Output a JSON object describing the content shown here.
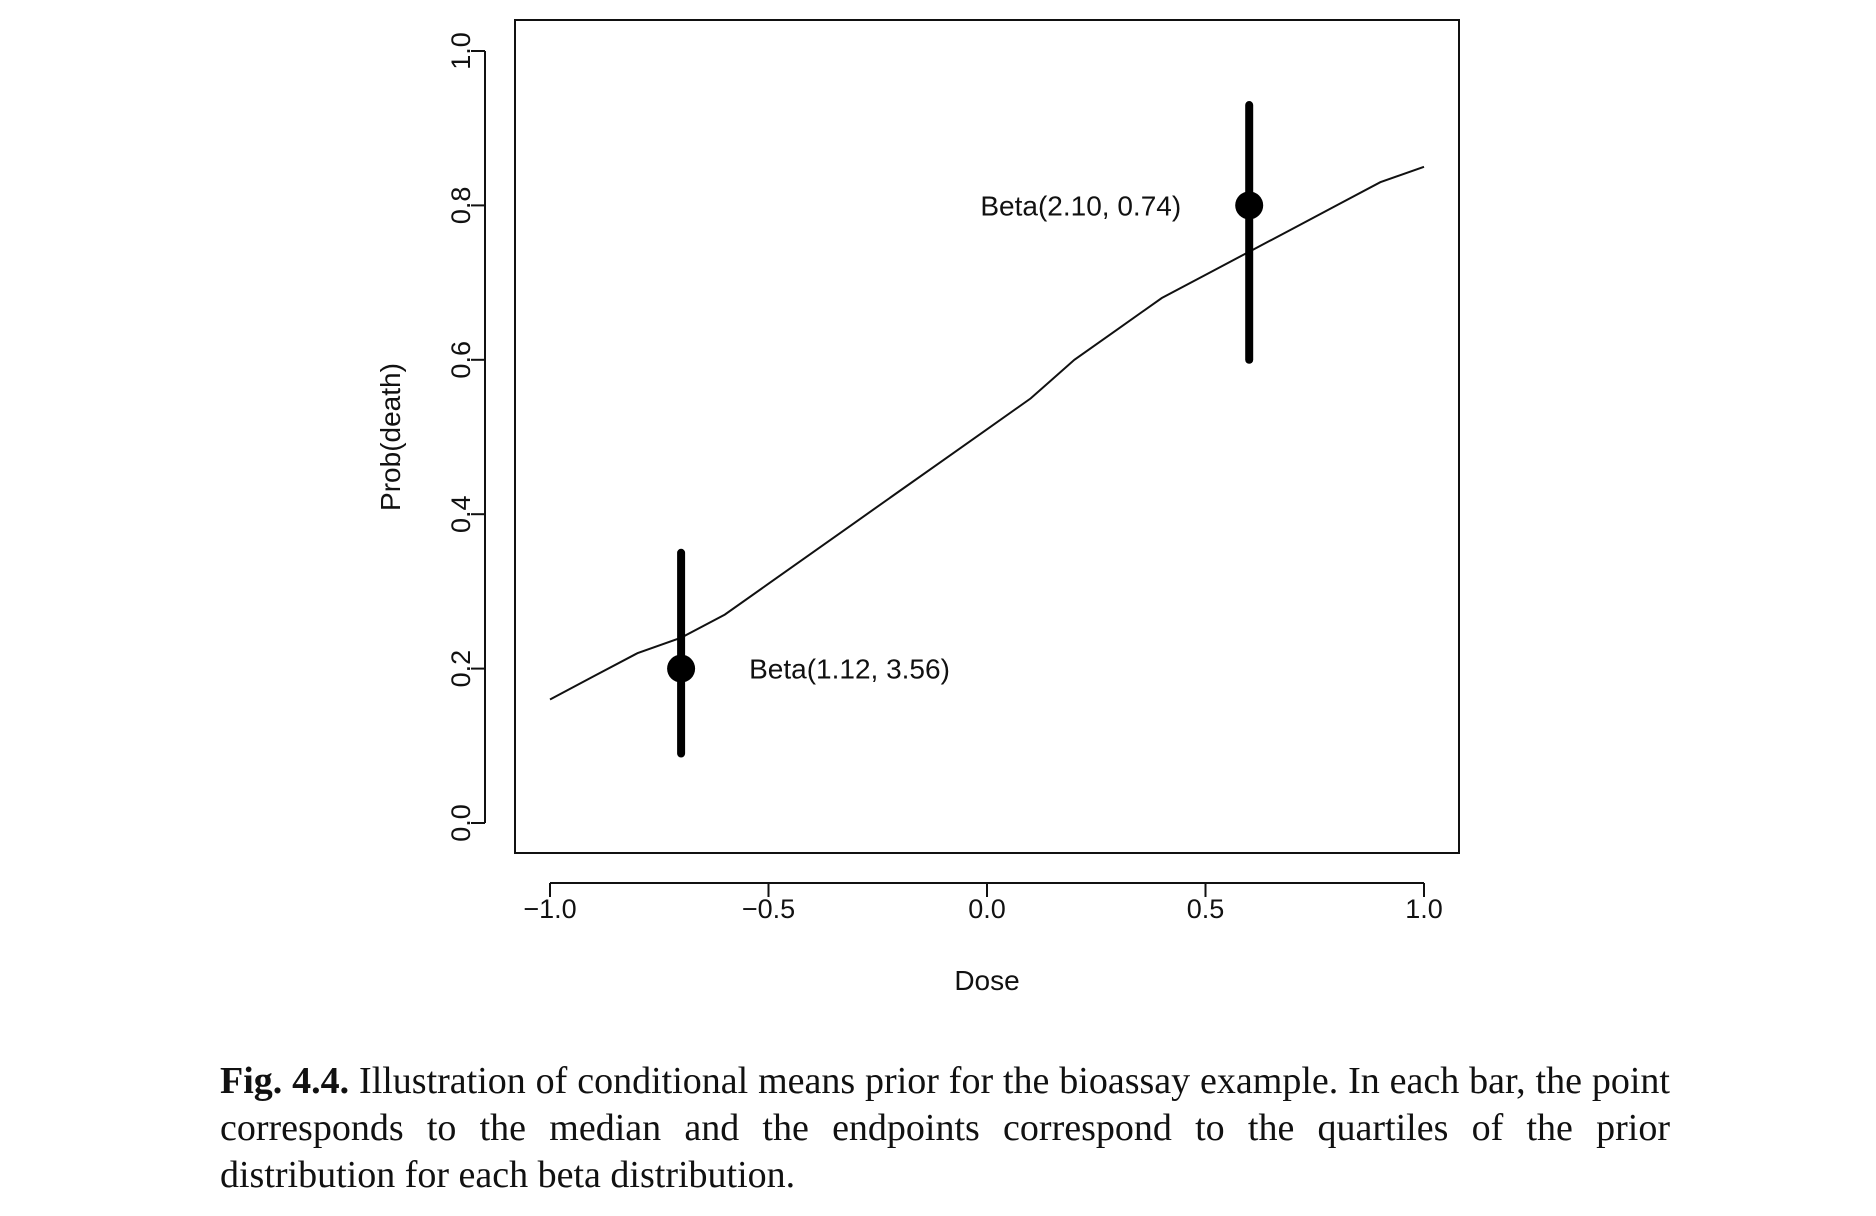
{
  "chart_data": {
    "type": "line",
    "xlabel": "Dose",
    "ylabel": "Prob(death)",
    "xlim": [
      -1.0,
      1.0
    ],
    "ylim": [
      0.0,
      1.0
    ],
    "x_ticks": [
      "−1.0",
      "−0.5",
      "0.0",
      "0.5",
      "1.0"
    ],
    "x_tick_values": [
      -1.0,
      -0.5,
      0.0,
      0.5,
      1.0
    ],
    "y_ticks": [
      "0.0",
      "0.2",
      "0.4",
      "0.6",
      "0.8",
      "1.0"
    ],
    "y_tick_values": [
      0.0,
      0.2,
      0.4,
      0.6,
      0.8,
      1.0
    ],
    "grid": false,
    "curve": {
      "x": [
        -1.0,
        -0.9,
        -0.8,
        -0.7,
        -0.6,
        -0.5,
        -0.4,
        -0.3,
        -0.2,
        -0.1,
        0.0,
        0.1,
        0.2,
        0.3,
        0.4,
        0.5,
        0.6,
        0.7,
        0.8,
        0.9,
        1.0
      ],
      "y": [
        0.16,
        0.19,
        0.22,
        0.24,
        0.27,
        0.31,
        0.35,
        0.39,
        0.43,
        0.47,
        0.51,
        0.55,
        0.6,
        0.64,
        0.68,
        0.71,
        0.74,
        0.77,
        0.8,
        0.83,
        0.85
      ]
    },
    "bars": [
      {
        "x": -0.7,
        "median": 0.2,
        "lower": 0.09,
        "upper": 0.35,
        "label": "Beta(1.12, 3.56)"
      },
      {
        "x": 0.6,
        "median": 0.8,
        "lower": 0.6,
        "upper": 0.93,
        "label": "Beta(2.10, 0.74)"
      }
    ]
  },
  "caption": {
    "label": "Fig. 4.4.",
    "text": " Illustration of conditional means prior for the bioassay example. In each bar, the point corresponds to the median and the endpoints correspond to the quartiles of the prior distribution for each beta distribution."
  }
}
